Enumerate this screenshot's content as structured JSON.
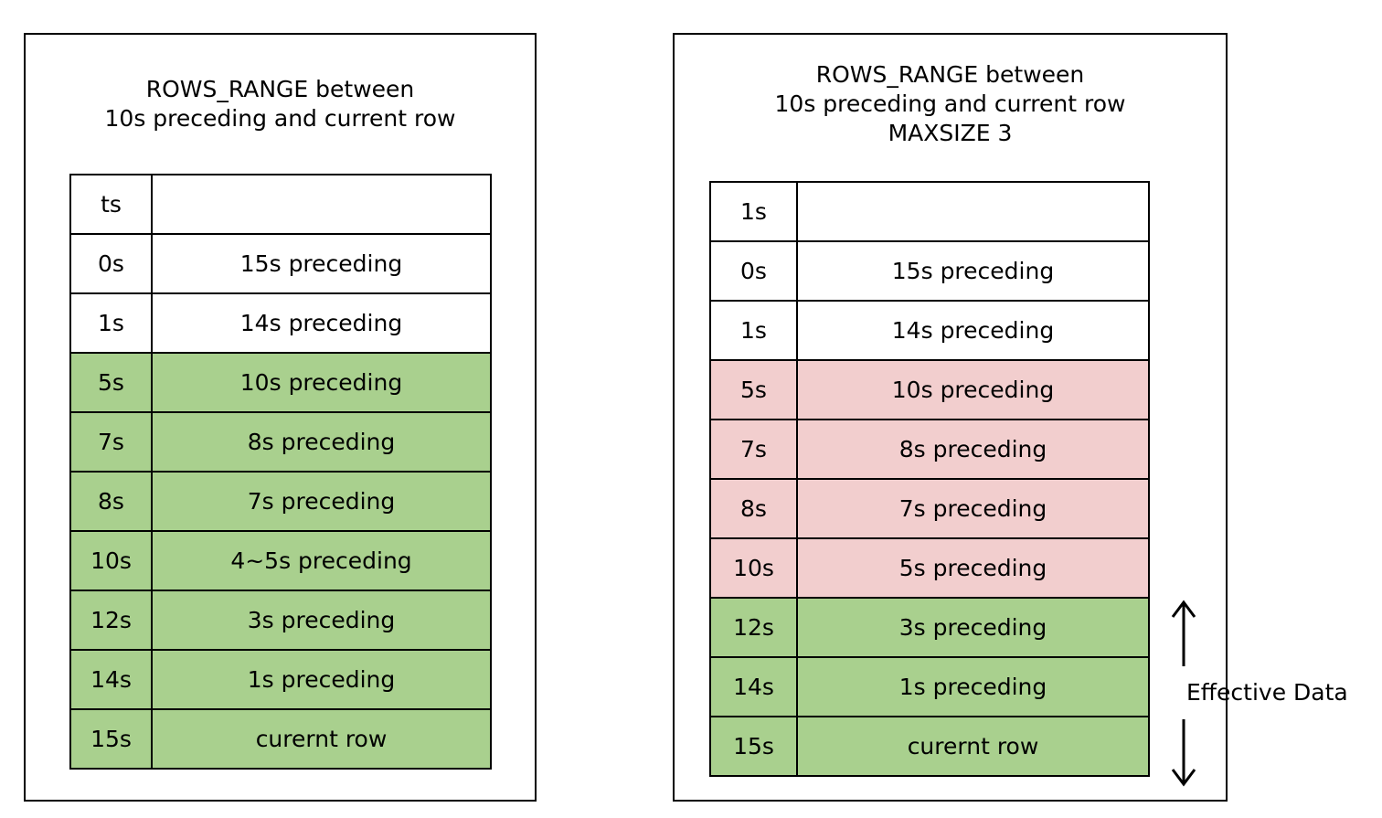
{
  "left_panel": {
    "title_line1": "ROWS_RANGE between",
    "title_line2": "10s preceding and current row",
    "header": {
      "ts": "ts",
      "desc": ""
    },
    "rows": [
      {
        "ts": "0s",
        "desc": "15s preceding",
        "state": "white"
      },
      {
        "ts": "1s",
        "desc": "14s preceding",
        "state": "white"
      },
      {
        "ts": "5s",
        "desc": "10s preceding",
        "state": "green"
      },
      {
        "ts": "7s",
        "desc": "8s preceding",
        "state": "green"
      },
      {
        "ts": "8s",
        "desc": "7s preceding",
        "state": "green"
      },
      {
        "ts": "10s",
        "desc": "4~5s preceding",
        "state": "green"
      },
      {
        "ts": "12s",
        "desc": "3s preceding",
        "state": "green"
      },
      {
        "ts": "14s",
        "desc": "1s preceding",
        "state": "green"
      },
      {
        "ts": "15s",
        "desc": "curernt row",
        "state": "green"
      }
    ]
  },
  "right_panel": {
    "title_line1": "ROWS_RANGE between",
    "title_line2": "10s preceding and current row",
    "title_line3": "MAXSIZE 3",
    "header": {
      "ts": "1s",
      "desc": ""
    },
    "rows": [
      {
        "ts": "0s",
        "desc": "15s preceding",
        "state": "white"
      },
      {
        "ts": "1s",
        "desc": "14s preceding",
        "state": "white"
      },
      {
        "ts": "5s",
        "desc": "10s preceding",
        "state": "pink"
      },
      {
        "ts": "7s",
        "desc": "8s preceding",
        "state": "pink"
      },
      {
        "ts": "8s",
        "desc": "7s preceding",
        "state": "pink"
      },
      {
        "ts": "10s",
        "desc": "5s preceding",
        "state": "pink"
      },
      {
        "ts": "12s",
        "desc": "3s preceding",
        "state": "green"
      },
      {
        "ts": "14s",
        "desc": "1s preceding",
        "state": "green"
      },
      {
        "ts": "15s",
        "desc": "curernt row",
        "state": "green"
      }
    ],
    "effective_label": "Effective Data"
  },
  "colors": {
    "white": "#ffffff",
    "green": "#a9d08e",
    "pink": "#f2cece",
    "border": "#000000"
  }
}
